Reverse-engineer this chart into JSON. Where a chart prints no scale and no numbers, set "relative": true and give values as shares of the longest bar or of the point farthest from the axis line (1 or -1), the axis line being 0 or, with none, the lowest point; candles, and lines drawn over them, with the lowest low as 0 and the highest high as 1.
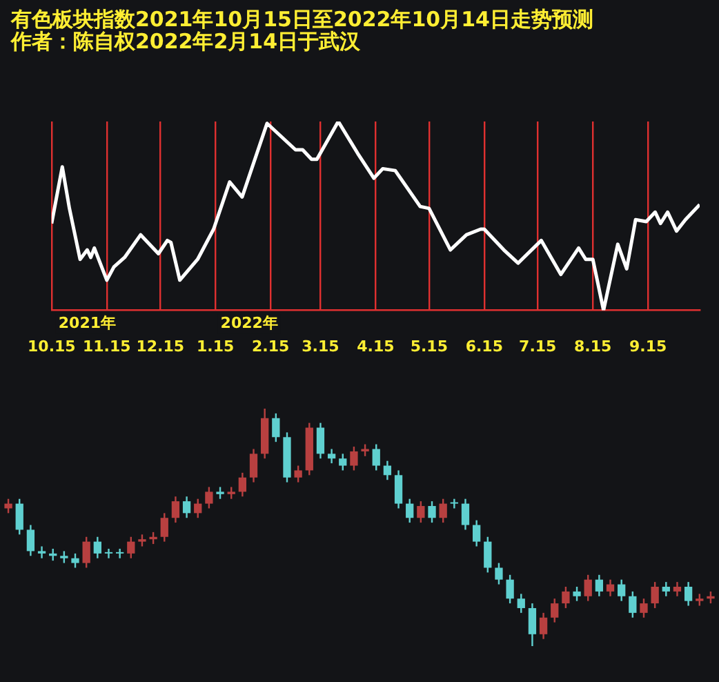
{
  "chart_data": [
    {
      "type": "line",
      "title": "有色板块指数2021年10月15日至2022年10月14日走势预测",
      "subtitle": "作者：陈自权2022年2月14日于武汉",
      "relative": true,
      "color": "#ffffff",
      "grid": "x",
      "legend": false,
      "marker": "none",
      "x": [
        "2021-10-15",
        "2021-10-21",
        "2021-10-25",
        "2021-10-31",
        "2021-11-04",
        "2021-11-06",
        "2021-11-08",
        "2021-11-15",
        "2021-11-19",
        "2021-11-25",
        "2021-12-04",
        "2021-12-14",
        "2021-12-19",
        "2021-12-21",
        "2021-12-26",
        "2022-01-05",
        "2022-01-14",
        "2022-01-23",
        "2022-01-30",
        "2022-02-13",
        "2022-03-01",
        "2022-03-05",
        "2022-03-10",
        "2022-03-13",
        "2022-03-25",
        "2022-04-05",
        "2022-04-14",
        "2022-04-19",
        "2022-04-26",
        "2022-05-10",
        "2022-05-15",
        "2022-05-27",
        "2022-06-05",
        "2022-06-13",
        "2022-06-15",
        "2022-06-26",
        "2022-07-04",
        "2022-07-17",
        "2022-07-28",
        "2022-08-07",
        "2022-08-11",
        "2022-08-15",
        "2022-08-21",
        "2022-08-29",
        "2022-09-03",
        "2022-09-08",
        "2022-09-14",
        "2022-09-19",
        "2022-09-22",
        "2022-09-26",
        "2022-10-01",
        "2022-10-06",
        "2022-10-14"
      ],
      "values": [
        0.46,
        0.76,
        0.54,
        0.27,
        0.32,
        0.28,
        0.33,
        0.16,
        0.23,
        0.28,
        0.4,
        0.3,
        0.37,
        0.36,
        0.16,
        0.27,
        0.43,
        0.68,
        0.6,
        0.99,
        0.85,
        0.85,
        0.8,
        0.8,
        1,
        0.83,
        0.7,
        0.75,
        0.74,
        0.55,
        0.54,
        0.32,
        0.4,
        0.43,
        0.43,
        0.32,
        0.25,
        0.37,
        0.19,
        0.33,
        0.27,
        0.27,
        0,
        0.35,
        0.22,
        0.48,
        0.47,
        0.52,
        0.46,
        0.52,
        0.42,
        0.48,
        0.56
      ],
      "xticks": [
        {
          "value": "2021-10-15",
          "label": "10.15"
        },
        {
          "value": "2021-11-15",
          "label": "11.15"
        },
        {
          "value": "2021-12-15",
          "label": "12.15"
        },
        {
          "value": "2022-01-15",
          "label": "1.15"
        },
        {
          "value": "2022-02-15",
          "label": "2.15"
        },
        {
          "value": "2022-03-15",
          "label": "3.15"
        },
        {
          "value": "2022-04-15",
          "label": "4.15"
        },
        {
          "value": "2022-05-15",
          "label": "5.15"
        },
        {
          "value": "2022-06-15",
          "label": "6.15"
        },
        {
          "value": "2022-07-15",
          "label": "7.15"
        },
        {
          "value": "2022-08-15",
          "label": "8.15"
        },
        {
          "value": "2022-09-15",
          "label": "9.15"
        }
      ],
      "xlim": [
        "2021-10-15",
        "2022-10-14"
      ],
      "annotations": [
        "2021年",
        "2022年"
      ]
    },
    {
      "type": "candlestick",
      "relative": true,
      "legend": false,
      "categories": [
        null,
        null,
        null,
        null,
        null,
        null,
        null,
        null,
        null,
        null,
        null,
        null,
        null,
        null,
        null,
        null,
        null,
        null,
        null,
        null,
        null,
        null,
        null,
        null,
        null,
        null,
        null,
        null,
        null,
        null,
        null,
        null,
        null,
        null,
        null,
        null,
        null,
        null,
        null,
        null,
        null,
        null,
        null,
        null,
        null,
        null,
        null,
        null,
        null,
        null,
        null,
        null,
        null,
        null,
        null,
        null,
        null,
        null,
        null,
        null,
        null,
        null,
        null,
        null
      ],
      "ohlc": [
        [
          0.58,
          0.62,
          0.56,
          0.6
        ],
        [
          0.6,
          0.62,
          0.47,
          0.49
        ],
        [
          0.49,
          0.51,
          0.38,
          0.4
        ],
        [
          0.4,
          0.42,
          0.37,
          0.39
        ],
        [
          0.39,
          0.41,
          0.36,
          0.38
        ],
        [
          0.38,
          0.4,
          0.35,
          0.37
        ],
        [
          0.37,
          0.39,
          0.33,
          0.35
        ],
        [
          0.35,
          0.46,
          0.33,
          0.44
        ],
        [
          0.44,
          0.46,
          0.37,
          0.39
        ],
        [
          0.39,
          0.41,
          0.37,
          0.39
        ],
        [
          0.39,
          0.41,
          0.37,
          0.39
        ],
        [
          0.39,
          0.46,
          0.37,
          0.44
        ],
        [
          0.44,
          0.47,
          0.42,
          0.45
        ],
        [
          0.45,
          0.48,
          0.43,
          0.46
        ],
        [
          0.46,
          0.56,
          0.44,
          0.54
        ],
        [
          0.54,
          0.63,
          0.52,
          0.61
        ],
        [
          0.61,
          0.63,
          0.54,
          0.56
        ],
        [
          0.56,
          0.62,
          0.54,
          0.6
        ],
        [
          0.6,
          0.67,
          0.58,
          0.65
        ],
        [
          0.65,
          0.67,
          0.62,
          0.64
        ],
        [
          0.64,
          0.67,
          0.62,
          0.65
        ],
        [
          0.65,
          0.73,
          0.63,
          0.71
        ],
        [
          0.71,
          0.83,
          0.69,
          0.81
        ],
        [
          0.81,
          1.0,
          0.79,
          0.96
        ],
        [
          0.96,
          0.98,
          0.86,
          0.88
        ],
        [
          0.88,
          0.9,
          0.69,
          0.71
        ],
        [
          0.71,
          0.76,
          0.69,
          0.74
        ],
        [
          0.74,
          0.94,
          0.72,
          0.92
        ],
        [
          0.92,
          0.94,
          0.79,
          0.81
        ],
        [
          0.81,
          0.83,
          0.77,
          0.79
        ],
        [
          0.79,
          0.81,
          0.74,
          0.76
        ],
        [
          0.76,
          0.84,
          0.74,
          0.82
        ],
        [
          0.82,
          0.85,
          0.8,
          0.83
        ],
        [
          0.83,
          0.85,
          0.74,
          0.76
        ],
        [
          0.76,
          0.78,
          0.7,
          0.72
        ],
        [
          0.72,
          0.74,
          0.58,
          0.6
        ],
        [
          0.6,
          0.62,
          0.52,
          0.54
        ],
        [
          0.54,
          0.61,
          0.52,
          0.59
        ],
        [
          0.59,
          0.61,
          0.52,
          0.54
        ],
        [
          0.54,
          0.62,
          0.52,
          0.6
        ],
        [
          0.6,
          0.62,
          0.58,
          0.6
        ],
        [
          0.6,
          0.62,
          0.49,
          0.51
        ],
        [
          0.51,
          0.53,
          0.42,
          0.44
        ],
        [
          0.44,
          0.46,
          0.31,
          0.33
        ],
        [
          0.33,
          0.35,
          0.26,
          0.28
        ],
        [
          0.28,
          0.3,
          0.18,
          0.2
        ],
        [
          0.2,
          0.22,
          0.14,
          0.16
        ],
        [
          0.16,
          0.18,
          0.0,
          0.05
        ],
        [
          0.05,
          0.14,
          0.03,
          0.12
        ],
        [
          0.12,
          0.2,
          0.1,
          0.18
        ],
        [
          0.18,
          0.25,
          0.16,
          0.23
        ],
        [
          0.23,
          0.25,
          0.19,
          0.21
        ],
        [
          0.21,
          0.3,
          0.19,
          0.28
        ],
        [
          0.28,
          0.3,
          0.21,
          0.23
        ],
        [
          0.23,
          0.28,
          0.21,
          0.26
        ],
        [
          0.26,
          0.28,
          0.19,
          0.21
        ],
        [
          0.21,
          0.23,
          0.12,
          0.14
        ],
        [
          0.14,
          0.2,
          0.12,
          0.18
        ],
        [
          0.18,
          0.27,
          0.16,
          0.25
        ],
        [
          0.25,
          0.27,
          0.21,
          0.23
        ],
        [
          0.23,
          0.27,
          0.21,
          0.25
        ],
        [
          0.25,
          0.27,
          0.17,
          0.19
        ],
        [
          0.19,
          0.22,
          0.17,
          0.2
        ],
        [
          0.2,
          0.23,
          0.18,
          0.21
        ]
      ],
      "colors": [
        "#b84040",
        "#5fd0d0",
        "#5fd0d0",
        "#5fd0d0",
        "#5fd0d0",
        "#5fd0d0",
        "#5fd0d0",
        "#b84040",
        "#5fd0d0",
        "#5fd0d0",
        "#5fd0d0",
        "#b84040",
        "#b84040",
        "#b84040",
        "#b84040",
        "#b84040",
        "#5fd0d0",
        "#b84040",
        "#b84040",
        "#5fd0d0",
        "#b84040",
        "#b84040",
        "#b84040",
        "#b84040",
        "#5fd0d0",
        "#5fd0d0",
        "#b84040",
        "#b84040",
        "#5fd0d0",
        "#5fd0d0",
        "#5fd0d0",
        "#b84040",
        "#b84040",
        "#5fd0d0",
        "#5fd0d0",
        "#5fd0d0",
        "#5fd0d0",
        "#b84040",
        "#5fd0d0",
        "#b84040",
        "#5fd0d0",
        "#5fd0d0",
        "#5fd0d0",
        "#5fd0d0",
        "#5fd0d0",
        "#5fd0d0",
        "#5fd0d0",
        "#5fd0d0",
        "#b84040",
        "#b84040",
        "#b84040",
        "#5fd0d0",
        "#b84040",
        "#5fd0d0",
        "#b84040",
        "#5fd0d0",
        "#5fd0d0",
        "#b84040",
        "#b84040",
        "#5fd0d0",
        "#b84040",
        "#5fd0d0",
        "#b84040",
        "#b84040"
      ]
    }
  ]
}
